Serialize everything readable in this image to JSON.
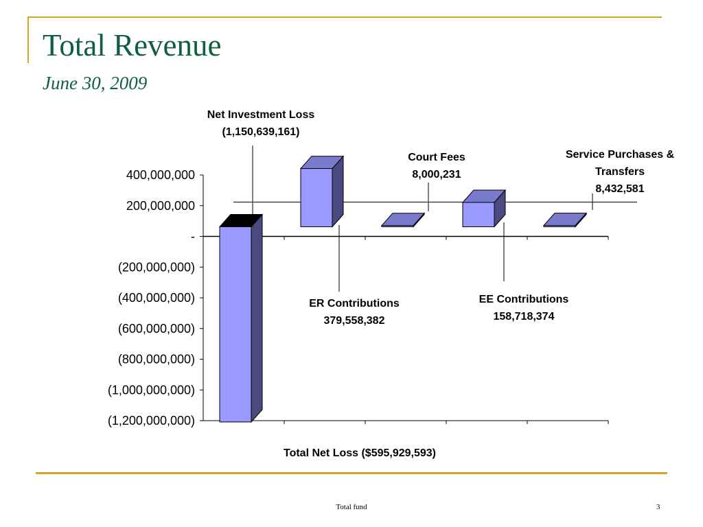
{
  "slide": {
    "title": "Total Revenue",
    "subtitle": "June 30, 2009",
    "footer": "Total fund",
    "page_number": "3"
  },
  "colors": {
    "title": "#0f5f3e",
    "frame": "#d4a52a",
    "bar_front": "#9999ff",
    "bar_top": "#7a7acc",
    "bar_side": "#4a4a80",
    "bar_highlight_top": "#000000"
  },
  "chart_data": {
    "type": "bar",
    "style": "3d-waterfall",
    "categories": [
      "Net Investment Loss",
      "ER Contributions",
      "Court Fees",
      "EE Contributions",
      "Service Purchases & Transfers"
    ],
    "values": [
      -1150639161,
      379558382,
      8000231,
      158718374,
      8432581
    ],
    "ylim": [
      -1200000000,
      400000000
    ],
    "yticks": [
      400000000,
      200000000,
      0,
      -200000000,
      -400000000,
      -600000000,
      -800000000,
      -1000000000,
      -1200000000
    ],
    "ytick_labels": [
      "400,000,000",
      "200,000,000",
      "-",
      "(200,000,000)",
      "(400,000,000)",
      "(600,000,000)",
      "(800,000,000)",
      "(1,000,000,000)",
      "(1,200,000,000)"
    ],
    "xlabel": "Total Net Loss ($595,929,593)",
    "annotations": [
      {
        "name": "net-investment-loss",
        "lines": [
          "Net Investment Loss",
          "(1,150,639,161)"
        ]
      },
      {
        "name": "er-contributions",
        "lines": [
          "ER Contributions",
          "379,558,382"
        ]
      },
      {
        "name": "court-fees",
        "lines": [
          "Court Fees",
          "8,000,231"
        ]
      },
      {
        "name": "ee-contributions",
        "lines": [
          "EE Contributions",
          "158,718,374"
        ]
      },
      {
        "name": "service-purchases",
        "lines": [
          "Service Purchases &",
          "Transfers",
          "8,432,581"
        ]
      }
    ],
    "grid": false,
    "legend": "none"
  }
}
